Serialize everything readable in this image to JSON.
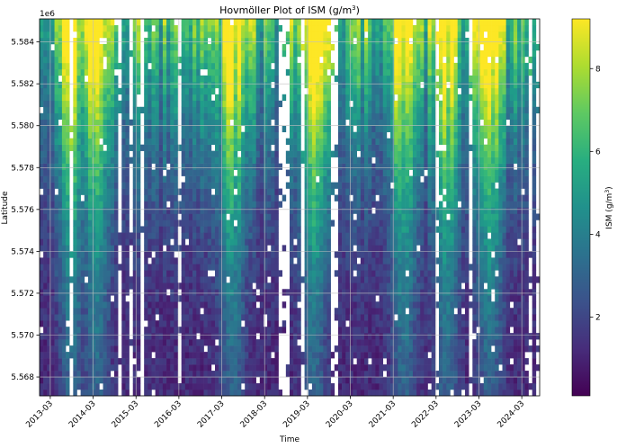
{
  "chart_data": {
    "type": "heatmap",
    "title_main": "Hovmöller Plot of ISM (g/m",
    "title_sup": "3",
    "title_end": ")",
    "xlabel": "Time",
    "ylabel": "Latitude",
    "y_offset_label": "1e6",
    "x_ticks": [
      "2013-03",
      "2014-03",
      "2015-03",
      "2016-03",
      "2017-03",
      "2018-03",
      "2019-03",
      "2020-03",
      "2021-03",
      "2022-03",
      "2023-03",
      "2024-03"
    ],
    "y_ticks": [
      5.568,
      5.57,
      5.572,
      5.574,
      5.576,
      5.578,
      5.58,
      5.582,
      5.584
    ],
    "ylim": [
      5.5671,
      5.5851
    ],
    "colorbar": {
      "label_main": "ISM (g/m",
      "label_sup": "3",
      "label_end": ")",
      "ticks": [
        2,
        4,
        6,
        8
      ],
      "range": [
        0.1,
        9.2
      ],
      "colormap": "viridis"
    },
    "grid": true,
    "n_time_steps": 134,
    "n_latitude_bins": 60,
    "time_range": [
      "2012-12",
      "2024-08"
    ],
    "high_value_periods": [
      "2013-09",
      "2014-04",
      "2017-06",
      "2019-05",
      "2021-06",
      "2022-06",
      "2023-06"
    ],
    "missing_value_color": "#ffffff"
  }
}
